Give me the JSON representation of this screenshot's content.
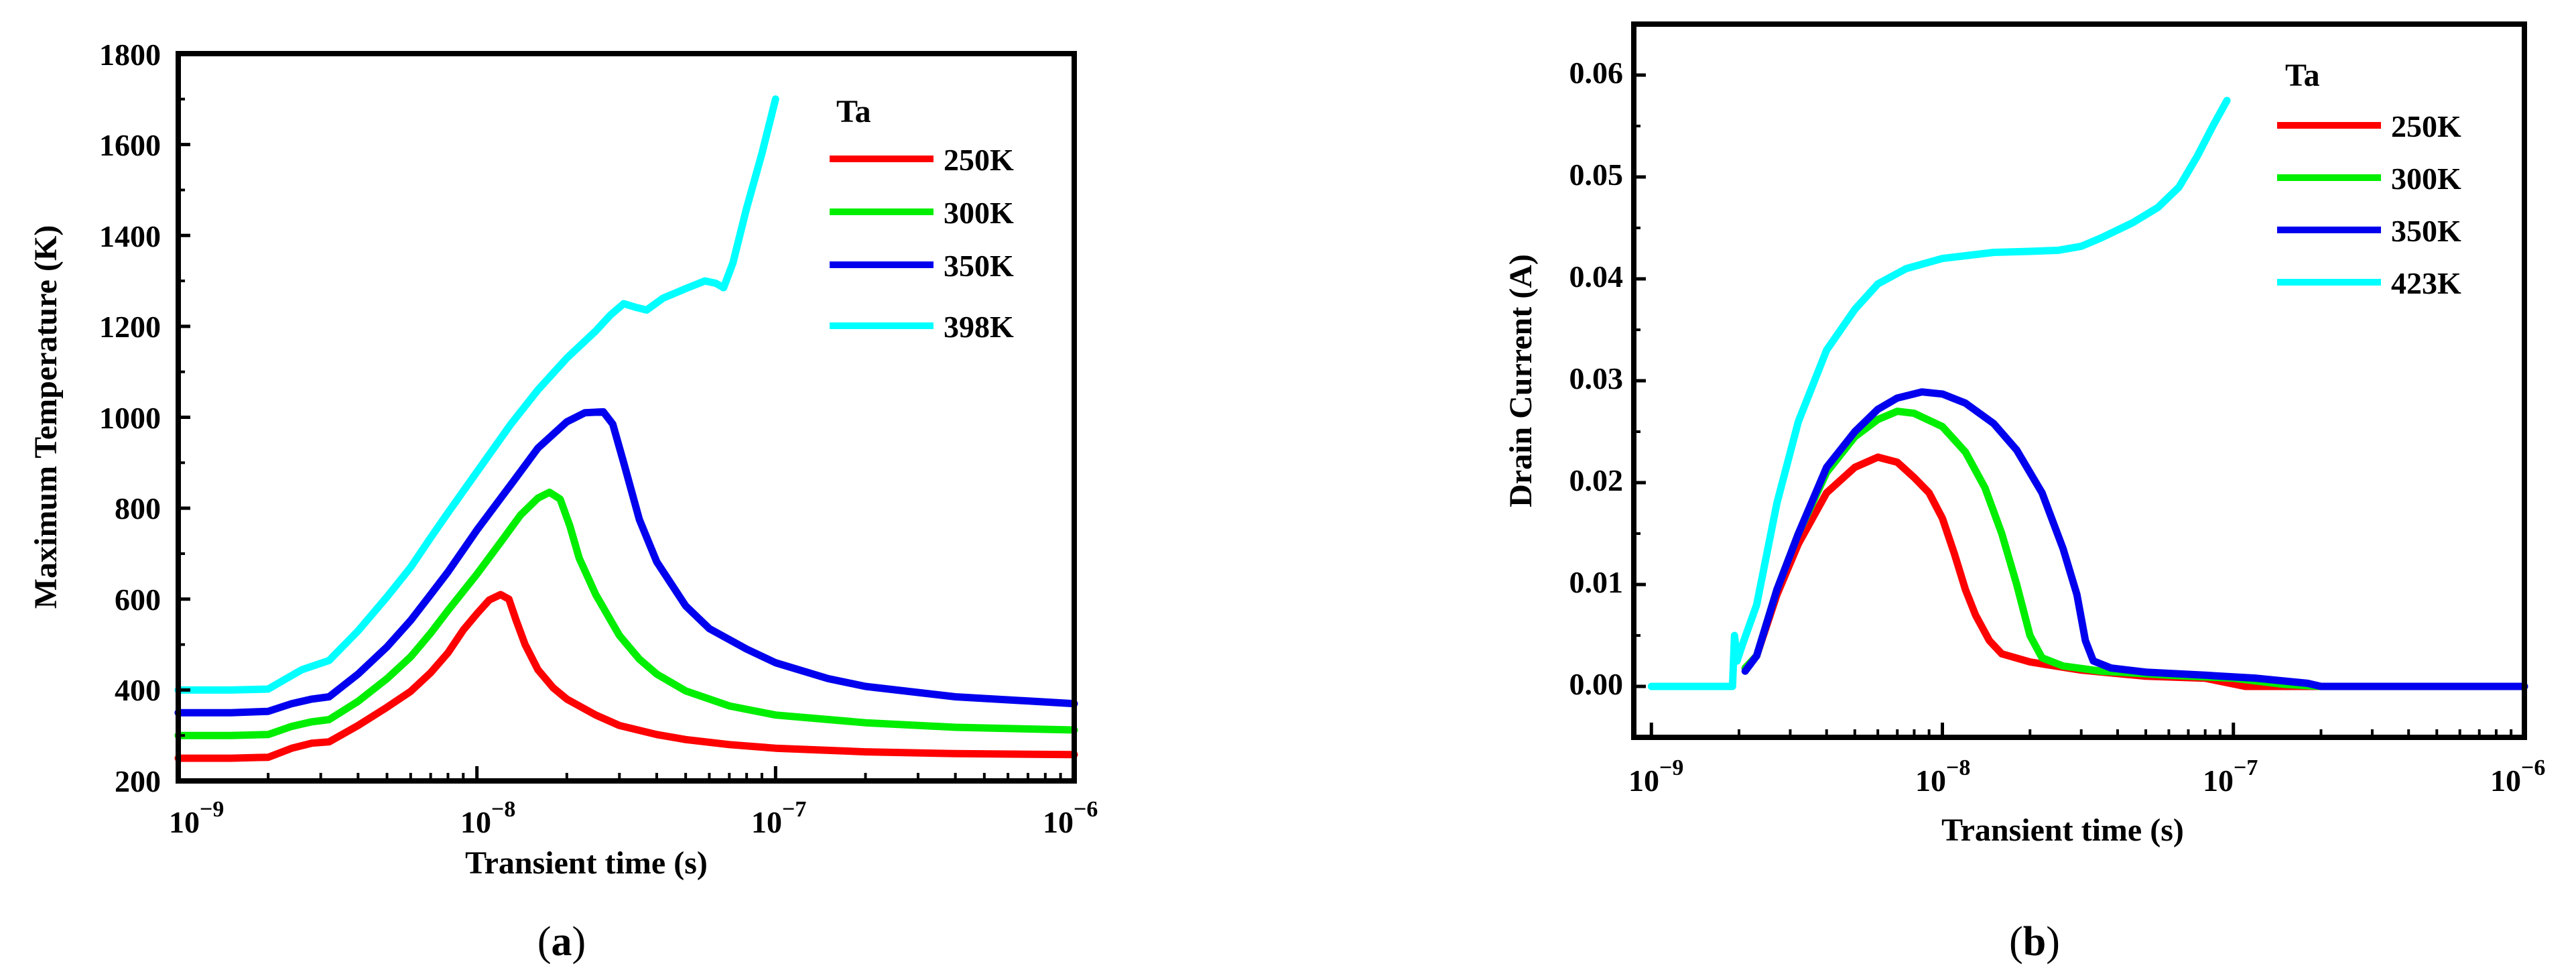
{
  "chart_data": [
    {
      "type": "line",
      "panel_label": "a",
      "title": "",
      "xlabel": "Transient time (s)",
      "ylabel": "Maximum Temperature (K)",
      "xscale": "log",
      "xlim": [
        1e-09,
        1e-06
      ],
      "ylim": [
        200,
        1800
      ],
      "x_tick_labels": [
        {
          "value": 1e-09,
          "base": "10",
          "exp": "−9"
        },
        {
          "value": 1e-08,
          "base": "10",
          "exp": "−8"
        },
        {
          "value": 1e-07,
          "base": "10",
          "exp": "−7"
        },
        {
          "value": 1e-06,
          "base": "10",
          "exp": "−6"
        }
      ],
      "y_ticks": [
        200,
        400,
        600,
        800,
        1000,
        1200,
        1400,
        1600,
        1800
      ],
      "y_tick_labels": [
        "200",
        "400",
        "600",
        "800",
        "1000",
        "1200",
        "1400",
        "1600",
        "1800"
      ],
      "legend_title": "Ta",
      "legend_position": "top-right",
      "series": [
        {
          "name": "250K",
          "color": "#ff0000",
          "points": [
            [
              1e-09,
              250
            ],
            [
              1.5e-09,
              250
            ],
            [
              2e-09,
              252
            ],
            [
              2.4e-09,
              272
            ],
            [
              2.8e-09,
              283
            ],
            [
              3.2e-09,
              286
            ],
            [
              4e-09,
              322
            ],
            [
              5e-09,
              362
            ],
            [
              6e-09,
              397
            ],
            [
              7e-09,
              438
            ],
            [
              8e-09,
              482
            ],
            [
              9e-09,
              532
            ],
            [
              1e-08,
              568
            ],
            [
              1.1e-08,
              598
            ],
            [
              1.2e-08,
              610
            ],
            [
              1.28e-08,
              600
            ],
            [
              1.35e-08,
              555
            ],
            [
              1.45e-08,
              500
            ],
            [
              1.6e-08,
              445
            ],
            [
              1.8e-08,
              405
            ],
            [
              2e-08,
              380
            ],
            [
              2.5e-08,
              345
            ],
            [
              3e-08,
              322
            ],
            [
              4e-08,
              302
            ],
            [
              5e-08,
              291
            ],
            [
              7e-08,
              280
            ],
            [
              1e-07,
              272
            ],
            [
              2e-07,
              264
            ],
            [
              4e-07,
              260
            ],
            [
              1e-06,
              258
            ]
          ]
        },
        {
          "name": "300K",
          "color": "#00ee00",
          "points": [
            [
              1e-09,
              300
            ],
            [
              1.5e-09,
              300
            ],
            [
              2e-09,
              302
            ],
            [
              2.4e-09,
              320
            ],
            [
              2.8e-09,
              330
            ],
            [
              3.2e-09,
              335
            ],
            [
              4e-09,
              375
            ],
            [
              5e-09,
              425
            ],
            [
              6e-09,
              473
            ],
            [
              7e-09,
              525
            ],
            [
              8e-09,
              575
            ],
            [
              1e-08,
              655
            ],
            [
              1.2e-08,
              725
            ],
            [
              1.4e-08,
              785
            ],
            [
              1.6e-08,
              822
            ],
            [
              1.75e-08,
              835
            ],
            [
              1.9e-08,
              820
            ],
            [
              2.05e-08,
              760
            ],
            [
              2.2e-08,
              690
            ],
            [
              2.5e-08,
              610
            ],
            [
              3e-08,
              520
            ],
            [
              3.5e-08,
              468
            ],
            [
              4e-08,
              435
            ],
            [
              5e-08,
              398
            ],
            [
              7e-08,
              365
            ],
            [
              1e-07,
              345
            ],
            [
              2e-07,
              328
            ],
            [
              4e-07,
              318
            ],
            [
              1e-06,
              312
            ]
          ]
        },
        {
          "name": "350K",
          "color": "#0000ee",
          "points": [
            [
              1e-09,
              350
            ],
            [
              1.5e-09,
              350
            ],
            [
              2e-09,
              353
            ],
            [
              2.4e-09,
              370
            ],
            [
              2.8e-09,
              380
            ],
            [
              3.2e-09,
              385
            ],
            [
              4e-09,
              435
            ],
            [
              5e-09,
              495
            ],
            [
              6e-09,
              553
            ],
            [
              7e-09,
              610
            ],
            [
              8e-09,
              660
            ],
            [
              1e-08,
              752
            ],
            [
              1.3e-08,
              852
            ],
            [
              1.6e-08,
              932
            ],
            [
              2e-08,
              990
            ],
            [
              2.3e-08,
              1010
            ],
            [
              2.65e-08,
              1012
            ],
            [
              2.85e-08,
              985
            ],
            [
              3.1e-08,
              900
            ],
            [
              3.5e-08,
              775
            ],
            [
              4e-08,
              682
            ],
            [
              5e-08,
              585
            ],
            [
              6e-08,
              535
            ],
            [
              8e-08,
              490
            ],
            [
              1e-07,
              460
            ],
            [
              1.5e-07,
              425
            ],
            [
              2e-07,
              408
            ],
            [
              4e-07,
              385
            ],
            [
              1e-06,
              370
            ]
          ]
        },
        {
          "name": "398K",
          "color": "#00ffff",
          "points": [
            [
              1e-09,
              400
            ],
            [
              1.5e-09,
              400
            ],
            [
              2e-09,
              402
            ],
            [
              2.3e-09,
              425
            ],
            [
              2.6e-09,
              445
            ],
            [
              3.2e-09,
              465
            ],
            [
              4e-09,
              530
            ],
            [
              5e-09,
              605
            ],
            [
              6e-09,
              670
            ],
            [
              7e-09,
              735
            ],
            [
              8e-09,
              790
            ],
            [
              1e-08,
              880
            ],
            [
              1.3e-08,
              985
            ],
            [
              1.6e-08,
              1060
            ],
            [
              2e-08,
              1130
            ],
            [
              2.5e-08,
              1190
            ],
            [
              2.8e-08,
              1225
            ],
            [
              3.1e-08,
              1250
            ],
            [
              3.4e-08,
              1242
            ],
            [
              3.7e-08,
              1236
            ],
            [
              4.2e-08,
              1262
            ],
            [
              5e-08,
              1283
            ],
            [
              5.8e-08,
              1300
            ],
            [
              6.3e-08,
              1295
            ],
            [
              6.7e-08,
              1285
            ],
            [
              7.2e-08,
              1340
            ],
            [
              8e-08,
              1460
            ],
            [
              9e-08,
              1580
            ],
            [
              1e-07,
              1700
            ]
          ]
        }
      ]
    },
    {
      "type": "line",
      "panel_label": "b",
      "title": "",
      "xlabel": "Transient time (s)",
      "ylabel": "Drain Current (A)",
      "xscale": "log",
      "xlim": [
        8.7e-10,
        1e-06
      ],
      "ylim": [
        -0.005,
        0.065
      ],
      "x_tick_labels": [
        {
          "value": 1e-09,
          "base": "10",
          "exp": "−9"
        },
        {
          "value": 1e-08,
          "base": "10",
          "exp": "−8"
        },
        {
          "value": 1e-07,
          "base": "10",
          "exp": "−7"
        },
        {
          "value": 1e-06,
          "base": "10",
          "exp": "−6"
        }
      ],
      "y_ticks": [
        0,
        0.01,
        0.02,
        0.03,
        0.04,
        0.05,
        0.06
      ],
      "y_tick_labels": [
        "0.00",
        "0.01",
        "0.02",
        "0.03",
        "0.04",
        "0.05",
        "0.06"
      ],
      "legend_title": "Ta",
      "legend_position": "top-right",
      "series": [
        {
          "name": "250K",
          "color": "#ff0000",
          "points": [
            [
              2.1e-09,
              0.0018
            ],
            [
              2.3e-09,
              0.003
            ],
            [
              2.7e-09,
              0.009
            ],
            [
              3.2e-09,
              0.014
            ],
            [
              4e-09,
              0.019
            ],
            [
              5e-09,
              0.0215
            ],
            [
              6e-09,
              0.0225
            ],
            [
              7e-09,
              0.022
            ],
            [
              8e-09,
              0.0205
            ],
            [
              9e-09,
              0.019
            ],
            [
              1e-08,
              0.0165
            ],
            [
              1.1e-08,
              0.013
            ],
            [
              1.2e-08,
              0.0095
            ],
            [
              1.3e-08,
              0.007
            ],
            [
              1.45e-08,
              0.0045
            ],
            [
              1.6e-08,
              0.0032
            ],
            [
              2e-08,
              0.0024
            ],
            [
              3e-08,
              0.0016
            ],
            [
              5e-08,
              0.001
            ],
            [
              8e-08,
              0.0008
            ],
            [
              1.1e-07,
              0.0
            ],
            [
              2e-07,
              0.0
            ],
            [
              1e-06,
              0.0
            ]
          ]
        },
        {
          "name": "300K",
          "color": "#00ee00",
          "points": [
            [
              2.1e-09,
              0.0018
            ],
            [
              2.3e-09,
              0.003
            ],
            [
              2.7e-09,
              0.0095
            ],
            [
              3.2e-09,
              0.015
            ],
            [
              4e-09,
              0.021
            ],
            [
              5e-09,
              0.0245
            ],
            [
              6e-09,
              0.0262
            ],
            [
              7e-09,
              0.027
            ],
            [
              8e-09,
              0.0268
            ],
            [
              1e-08,
              0.0255
            ],
            [
              1.2e-08,
              0.023
            ],
            [
              1.4e-08,
              0.0195
            ],
            [
              1.6e-08,
              0.015
            ],
            [
              1.8e-08,
              0.01
            ],
            [
              2e-08,
              0.005
            ],
            [
              2.2e-08,
              0.0028
            ],
            [
              2.6e-08,
              0.002
            ],
            [
              3.5e-08,
              0.0015
            ],
            [
              6e-08,
              0.0011
            ],
            [
              1e-07,
              0.0008
            ],
            [
              1.5e-07,
              0.0002
            ],
            [
              2e-07,
              0.0
            ],
            [
              1e-06,
              0.0
            ]
          ]
        },
        {
          "name": "350K",
          "color": "#0000ee",
          "points": [
            [
              2.1e-09,
              0.0015
            ],
            [
              2.3e-09,
              0.003
            ],
            [
              2.7e-09,
              0.0095
            ],
            [
              3.2e-09,
              0.015
            ],
            [
              4e-09,
              0.0215
            ],
            [
              5e-09,
              0.025
            ],
            [
              6e-09,
              0.0272
            ],
            [
              7e-09,
              0.0283
            ],
            [
              8.5e-09,
              0.0289
            ],
            [
              1e-08,
              0.0287
            ],
            [
              1.2e-08,
              0.0278
            ],
            [
              1.5e-08,
              0.0258
            ],
            [
              1.8e-08,
              0.0232
            ],
            [
              2.2e-08,
              0.019
            ],
            [
              2.6e-08,
              0.0135
            ],
            [
              2.9e-08,
              0.009
            ],
            [
              3.1e-08,
              0.0045
            ],
            [
              3.3e-08,
              0.0025
            ],
            [
              3.8e-08,
              0.0018
            ],
            [
              5e-08,
              0.0014
            ],
            [
              8e-08,
              0.0011
            ],
            [
              1.2e-07,
              0.0008
            ],
            [
              1.8e-07,
              0.0003
            ],
            [
              2e-07,
              0.0
            ],
            [
              1e-06,
              0.0
            ]
          ]
        },
        {
          "name": "423K",
          "color": "#00ffff",
          "points": [
            [
              1e-09,
              0.0
            ],
            [
              1.9e-09,
              0.0
            ],
            [
              1.93e-09,
              0.005
            ],
            [
              1.97e-09,
              0.0025
            ],
            [
              2.05e-09,
              0.004
            ],
            [
              2.3e-09,
              0.008
            ],
            [
              2.7e-09,
              0.018
            ],
            [
              3.2e-09,
              0.026
            ],
            [
              4e-09,
              0.033
            ],
            [
              5e-09,
              0.037
            ],
            [
              6e-09,
              0.0395
            ],
            [
              7.5e-09,
              0.041
            ],
            [
              1e-08,
              0.042
            ],
            [
              1.5e-08,
              0.0426
            ],
            [
              2e-08,
              0.0427
            ],
            [
              2.5e-08,
              0.0428
            ],
            [
              3e-08,
              0.0432
            ],
            [
              3.5e-08,
              0.044
            ],
            [
              4.5e-08,
              0.0455
            ],
            [
              5.5e-08,
              0.047
            ],
            [
              6.5e-08,
              0.049
            ],
            [
              7.5e-08,
              0.052
            ],
            [
              8.5e-08,
              0.055
            ],
            [
              9.5e-08,
              0.0575
            ]
          ]
        }
      ]
    }
  ]
}
